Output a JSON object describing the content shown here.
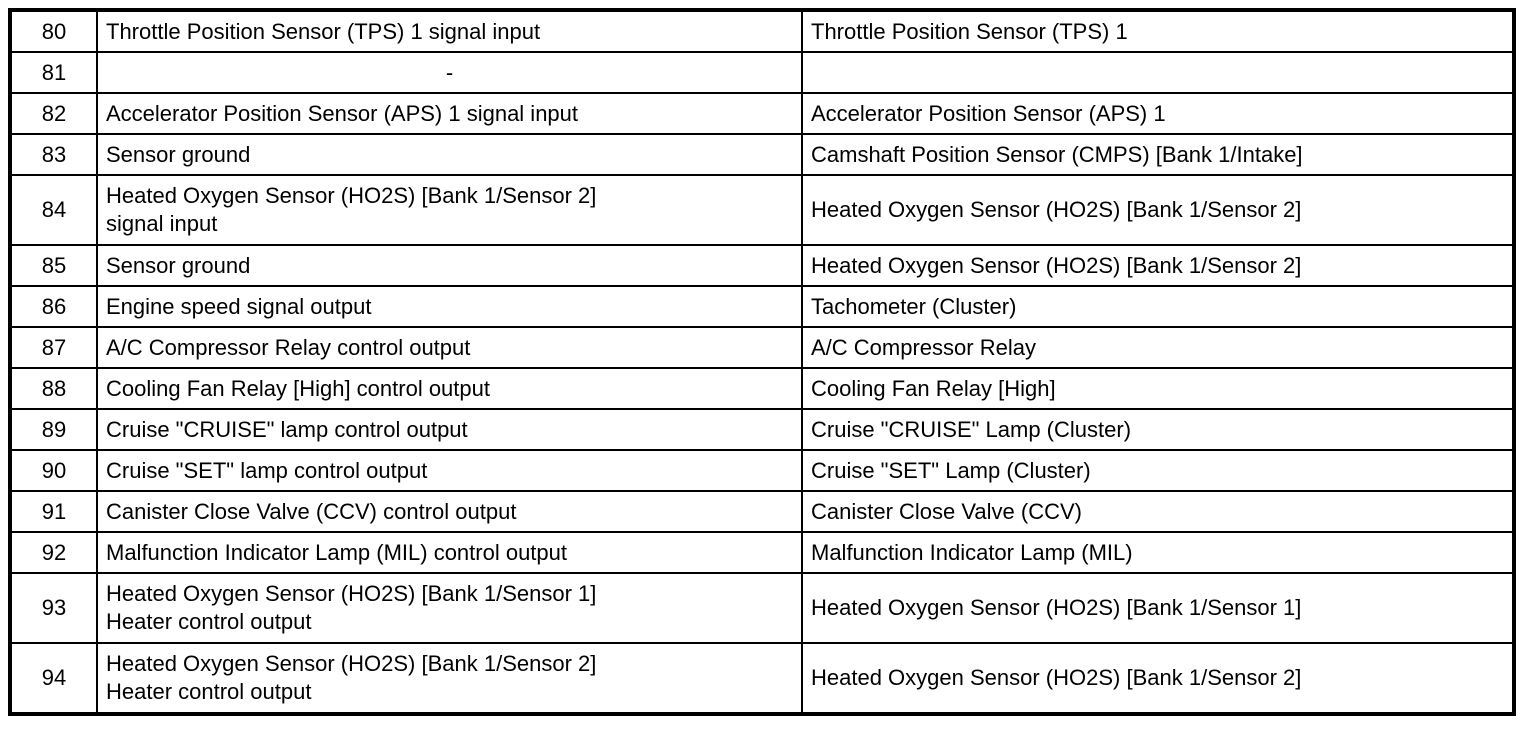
{
  "table": {
    "columns": [
      "pin",
      "description",
      "connected_to"
    ],
    "rows": [
      {
        "pin": "80",
        "description": "Throttle Position Sensor (TPS) 1 signal input",
        "connected_to": "Throttle Position Sensor (TPS) 1"
      },
      {
        "pin": "81",
        "description": "-",
        "connected_to": ""
      },
      {
        "pin": "82",
        "description": "Accelerator Position Sensor (APS) 1 signal input",
        "connected_to": "Accelerator Position Sensor (APS) 1"
      },
      {
        "pin": "83",
        "description": "Sensor ground",
        "connected_to": "Camshaft Position Sensor (CMPS) [Bank 1/Intake]"
      },
      {
        "pin": "84",
        "description": "Heated Oxygen Sensor (HO2S) [Bank 1/Sensor 2]\nsignal input",
        "connected_to": "Heated Oxygen Sensor (HO2S) [Bank 1/Sensor 2]"
      },
      {
        "pin": "85",
        "description": "Sensor ground",
        "connected_to": "Heated Oxygen Sensor (HO2S) [Bank 1/Sensor 2]"
      },
      {
        "pin": "86",
        "description": "Engine speed signal output",
        "connected_to": "Tachometer (Cluster)"
      },
      {
        "pin": "87",
        "description": "A/C Compressor Relay control output",
        "connected_to": "A/C Compressor Relay"
      },
      {
        "pin": "88",
        "description": "Cooling Fan Relay [High] control output",
        "connected_to": "Cooling Fan Relay [High]"
      },
      {
        "pin": "89",
        "description": "Cruise \"CRUISE\" lamp control output",
        "connected_to": "Cruise \"CRUISE\" Lamp (Cluster)"
      },
      {
        "pin": "90",
        "description": "Cruise \"SET\" lamp control output",
        "connected_to": "Cruise \"SET\" Lamp (Cluster)"
      },
      {
        "pin": "91",
        "description": "Canister Close Valve (CCV) control output",
        "connected_to": "Canister Close Valve (CCV)"
      },
      {
        "pin": "92",
        "description": "Malfunction Indicator Lamp (MIL) control output",
        "connected_to": "Malfunction Indicator Lamp (MIL)"
      },
      {
        "pin": "93",
        "description": "Heated Oxygen Sensor (HO2S) [Bank 1/Sensor 1]\nHeater control output",
        "connected_to": "Heated Oxygen Sensor (HO2S) [Bank 1/Sensor 1]"
      },
      {
        "pin": "94",
        "description": "Heated Oxygen Sensor (HO2S) [Bank 1/Sensor 2]\nHeater control output",
        "connected_to": "Heated Oxygen Sensor (HO2S) [Bank 1/Sensor 2]"
      }
    ]
  }
}
